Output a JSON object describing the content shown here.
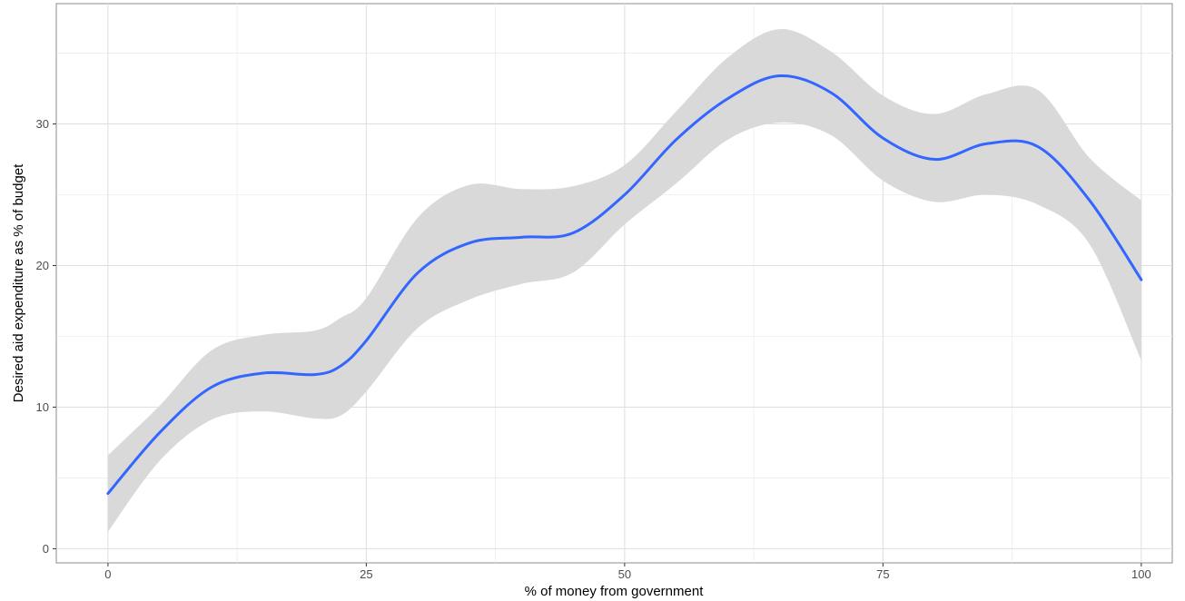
{
  "chart_data": {
    "type": "line",
    "title": "",
    "xlabel": "% of money from government",
    "ylabel": "Desired aid expenditure as % of budget",
    "xlim": [
      -5,
      103
    ],
    "ylim": [
      -1,
      38.5
    ],
    "x_ticks": [
      0,
      25,
      50,
      75,
      100
    ],
    "x_tick_labels": [
      "0",
      "25",
      "50",
      "75",
      "100"
    ],
    "y_ticks": [
      0,
      10,
      20,
      30
    ],
    "y_tick_labels": [
      "0",
      "10",
      "20",
      "30"
    ],
    "grid": true,
    "legend": "none",
    "series": [
      {
        "kind": "smooth-line-with-confidence-band",
        "color": "#3366ff",
        "band_color": "#d9d9d9",
        "x": [
          0,
          5,
          10,
          15,
          20,
          22.5,
          25,
          30,
          35,
          40,
          45,
          50,
          55,
          60,
          65,
          70,
          75,
          80,
          85,
          90,
          95,
          100
        ],
        "y": [
          3.9,
          8.2,
          11.4,
          12.4,
          12.3,
          12.9,
          14.7,
          19.5,
          21.6,
          22.0,
          22.3,
          25.0,
          28.9,
          31.8,
          33.4,
          32.2,
          29.0,
          27.5,
          28.6,
          28.4,
          24.6,
          19.0
        ],
        "lower": [
          1.2,
          6.2,
          9.1,
          9.7,
          9.2,
          9.4,
          11.1,
          15.6,
          17.6,
          18.7,
          19.5,
          22.9,
          25.8,
          28.9,
          30.1,
          29.2,
          26.0,
          24.5,
          25.0,
          24.3,
          21.5,
          13.3
        ],
        "upper": [
          6.6,
          10.1,
          14.0,
          15.1,
          15.4,
          16.3,
          17.7,
          23.4,
          25.7,
          25.4,
          25.6,
          27.1,
          30.9,
          34.7,
          36.7,
          35.1,
          32.0,
          30.7,
          32.1,
          32.4,
          27.6,
          24.6
        ]
      }
    ]
  }
}
